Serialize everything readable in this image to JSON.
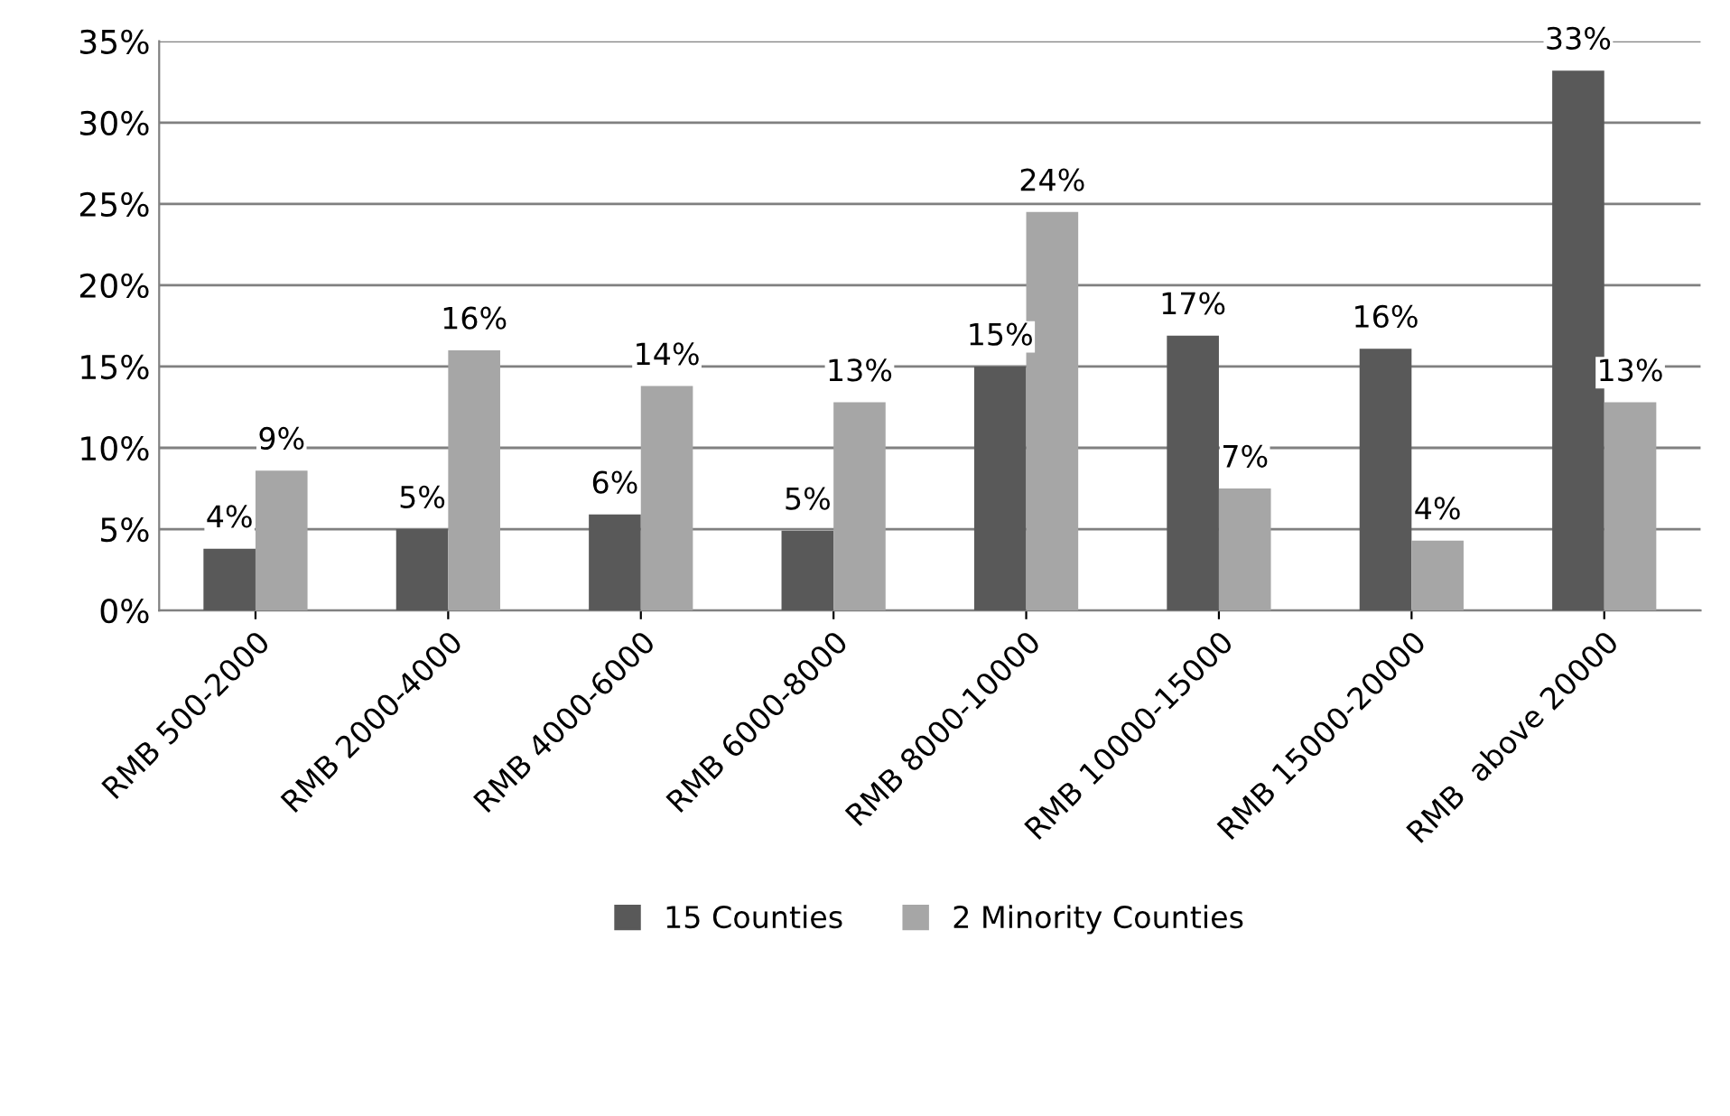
{
  "chart_data": {
    "type": "bar",
    "categories": [
      "RMB 500-2000",
      "RMB 2000-4000",
      "RMB 4000-6000",
      "RMB 6000-8000",
      "RMB 8000-10000",
      "RMB 10000-15000",
      "RMB 15000-20000",
      "RMB  above 20000"
    ],
    "series": [
      {
        "name": "15 Counties",
        "color": "#595959",
        "values": [
          3.8,
          5.0,
          5.9,
          4.9,
          15.0,
          16.9,
          16.1,
          33.2
        ],
        "value_labels": [
          "4%",
          "5%",
          "6%",
          "5%",
          "15%",
          "17%",
          "16%",
          "33%"
        ]
      },
      {
        "name": "2 Minority Counties",
        "color": "#a6a6a6",
        "values": [
          8.6,
          16.0,
          13.8,
          12.8,
          24.5,
          7.5,
          4.3,
          12.8
        ],
        "value_labels": [
          "9%",
          "16%",
          "14%",
          "13%",
          "24%",
          "7%",
          "4%",
          "13%"
        ]
      }
    ],
    "ylim": [
      0,
      35
    ],
    "yticks": [
      {
        "value": 0,
        "label": "0%"
      },
      {
        "value": 5,
        "label": "5%"
      },
      {
        "value": 10,
        "label": "10%"
      },
      {
        "value": 15,
        "label": "15%"
      },
      {
        "value": 20,
        "label": "20%"
      },
      {
        "value": 25,
        "label": "25%"
      },
      {
        "value": 30,
        "label": "30%"
      },
      {
        "value": 35,
        "label": "35%"
      }
    ],
    "grid": "y",
    "legend": "bottom"
  }
}
